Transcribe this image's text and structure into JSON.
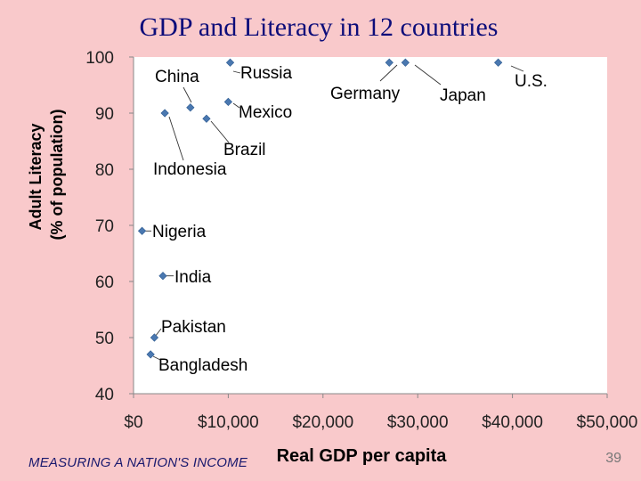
{
  "slide": {
    "footer": "MEASURING A NATION'S INCOME",
    "page_number": "39"
  },
  "colors": {
    "background": "#f9c9cb",
    "plot_area": "#ffffff",
    "marker": "#4a78b0",
    "text": "#000000",
    "title": "#0d0d7a"
  },
  "chart_data": {
    "type": "scatter",
    "title": "GDP and Literacy in 12 countries",
    "xlabel": "Real GDP per capita",
    "ylabel_lines": [
      "Adult Literacy",
      "(% of population)"
    ],
    "xlim": [
      0,
      50000
    ],
    "ylim": [
      40,
      100
    ],
    "xticks": [
      0,
      10000,
      20000,
      30000,
      40000,
      50000
    ],
    "xtick_labels": [
      "$0",
      "$10,000",
      "$20,000",
      "$30,000",
      "$40,000",
      "$50,000"
    ],
    "yticks": [
      40,
      50,
      60,
      70,
      80,
      90,
      100
    ],
    "ytick_labels": [
      "40",
      "50",
      "60",
      "70",
      "80",
      "90",
      "100"
    ],
    "grid": false,
    "points": [
      {
        "label": "Russia",
        "x": 10200,
        "y": 99
      },
      {
        "label": "Mexico",
        "x": 10000,
        "y": 92
      },
      {
        "label": "China",
        "x": 6000,
        "y": 91
      },
      {
        "label": "Brazil",
        "x": 7700,
        "y": 89
      },
      {
        "label": "Indonesia",
        "x": 3300,
        "y": 90
      },
      {
        "label": "Nigeria",
        "x": 900,
        "y": 69
      },
      {
        "label": "India",
        "x": 3100,
        "y": 61
      },
      {
        "label": "Pakistan",
        "x": 2200,
        "y": 50
      },
      {
        "label": "Bangladesh",
        "x": 1800,
        "y": 47
      },
      {
        "label": "Germany",
        "x": 27000,
        "y": 99
      },
      {
        "label": "Japan",
        "x": 28700,
        "y": 99
      },
      {
        "label": "U.S.",
        "x": 38500,
        "y": 99
      }
    ]
  }
}
